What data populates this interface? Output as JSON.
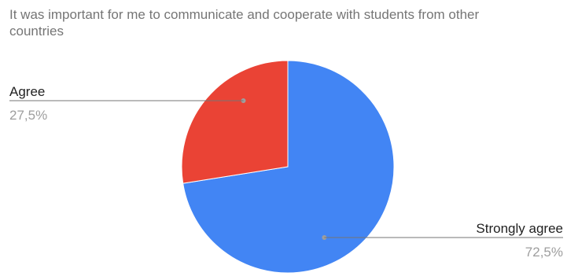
{
  "chart_data": {
    "type": "pie",
    "title": "It was important for me to communicate and cooperate with students from other countries",
    "slices": [
      {
        "label": "Strongly agree",
        "value": 72.5,
        "display": "72,5%",
        "color": "#4285f4"
      },
      {
        "label": "Agree",
        "value": 27.5,
        "display": "27,5%",
        "color": "#ea4335"
      }
    ],
    "legend": "none"
  }
}
